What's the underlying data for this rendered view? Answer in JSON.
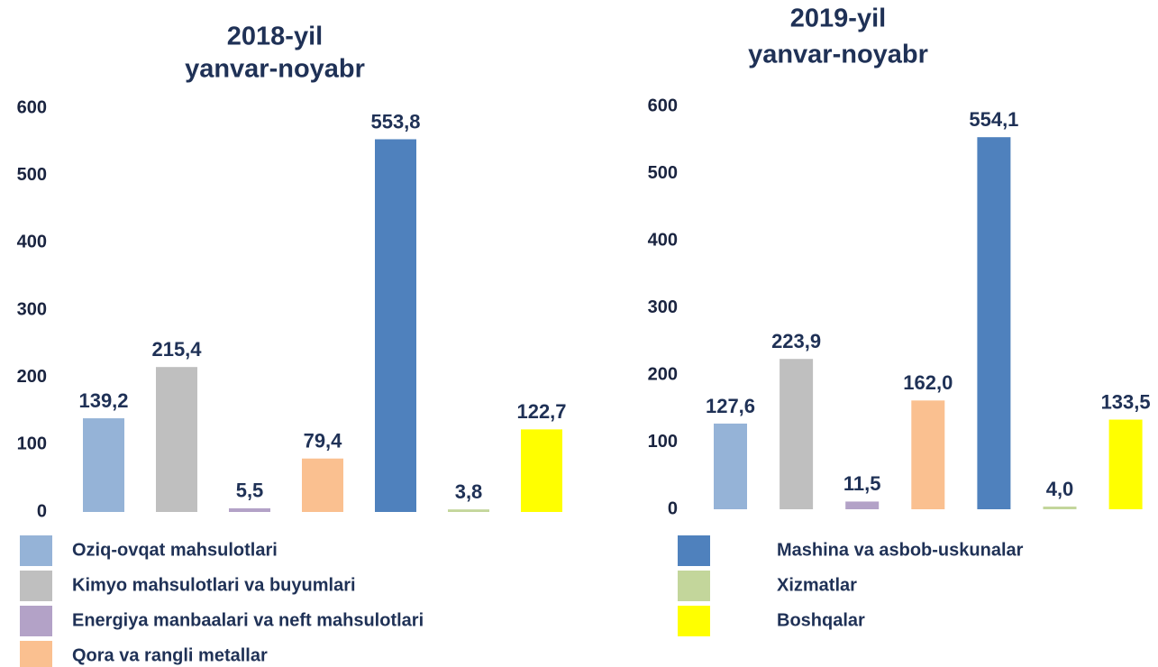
{
  "chart_data": [
    {
      "type": "bar",
      "title": [
        "2018-yil",
        "yanvar-noyabr"
      ],
      "values": [
        139.2,
        215.4,
        5.5,
        79.4,
        553.8,
        3.8,
        122.7
      ],
      "value_labels": [
        "139,2",
        "215,4",
        "5,5",
        "79,4",
        "553,8",
        "3,8",
        "122,7"
      ],
      "ylim": [
        0,
        600
      ],
      "yticks": [
        0,
        100,
        200,
        300,
        400,
        500,
        600
      ],
      "grid": false
    },
    {
      "type": "bar",
      "title": [
        "2019-yil",
        "yanvar-noyabr"
      ],
      "values": [
        127.6,
        223.9,
        11.5,
        162.0,
        554.1,
        4.0,
        133.5
      ],
      "value_labels": [
        "127,6",
        "223,9",
        "11,5",
        "162,0",
        "554,1",
        "4,0",
        "133,5"
      ],
      "ylim": [
        0,
        600
      ],
      "yticks": [
        0,
        100,
        200,
        300,
        400,
        500,
        600
      ],
      "grid": false
    }
  ],
  "legend": [
    {
      "name": "Oziq-ovqat mahsulotlari",
      "color": "#95b3d7"
    },
    {
      "name": "Kimyo mahsulotlari va buyumlari",
      "color": "#bfbfbf"
    },
    {
      "name": "Energiya manbaalari va neft mahsulotlari",
      "color": "#b3a2c7"
    },
    {
      "name": "Qora va rangli metallar",
      "color": "#fac090"
    },
    {
      "name": "Mashina va asbob-uskunalar",
      "color": "#4f81bd"
    },
    {
      "name": "Xizmatlar",
      "color": "#c3d69b"
    },
    {
      "name": "Boshqalar",
      "color": "#ffff00"
    }
  ]
}
